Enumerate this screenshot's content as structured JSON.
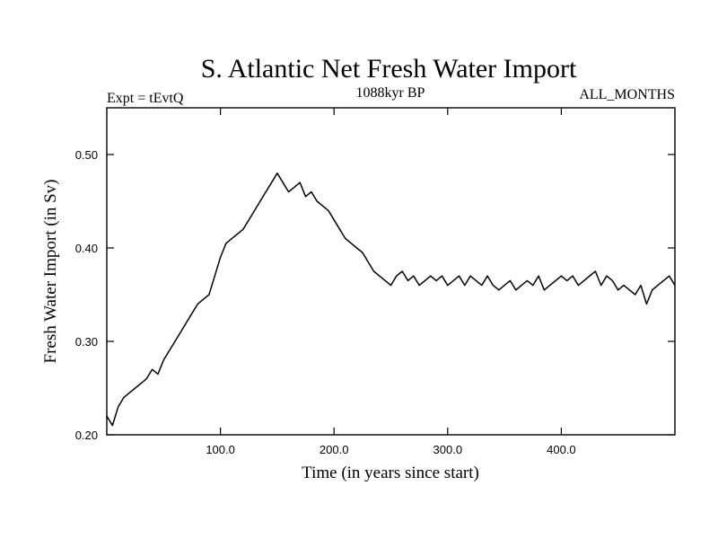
{
  "chart_data": {
    "type": "line",
    "title": "S. Atlantic Net Fresh Water Import",
    "subtitle_left": "Expt = tEvtQ",
    "subtitle_center": "1088kyr BP",
    "subtitle_right": "ALL_MONTHS",
    "xlabel": "Time (in years since start)",
    "ylabel": "Fresh Water Import (in Sv)",
    "xlim": [
      0,
      500
    ],
    "ylim": [
      0.2,
      0.55
    ],
    "x_ticks": [
      100,
      200,
      300,
      400
    ],
    "x_tick_labels": [
      "100.0",
      "200.0",
      "300.0",
      "400.0"
    ],
    "y_ticks": [
      0.2,
      0.3,
      0.4,
      0.5
    ],
    "y_tick_labels": [
      "0.20",
      "0.30",
      "0.40",
      "0.50"
    ],
    "grid": false,
    "series": [
      {
        "name": "Net Fresh Water Import",
        "x": [
          0,
          5,
          10,
          15,
          20,
          25,
          30,
          35,
          40,
          45,
          50,
          55,
          60,
          65,
          70,
          75,
          80,
          85,
          90,
          95,
          100,
          105,
          110,
          115,
          120,
          125,
          130,
          135,
          140,
          145,
          150,
          155,
          160,
          165,
          170,
          175,
          180,
          185,
          190,
          195,
          200,
          205,
          210,
          215,
          220,
          225,
          230,
          235,
          240,
          245,
          250,
          255,
          260,
          265,
          270,
          275,
          280,
          285,
          290,
          295,
          300,
          305,
          310,
          315,
          320,
          325,
          330,
          335,
          340,
          345,
          350,
          355,
          360,
          365,
          370,
          375,
          380,
          385,
          390,
          395,
          400,
          405,
          410,
          415,
          420,
          425,
          430,
          435,
          440,
          445,
          450,
          455,
          460,
          465,
          470,
          475,
          480,
          485,
          490,
          495,
          500
        ],
        "values": [
          0.22,
          0.21,
          0.23,
          0.24,
          0.245,
          0.25,
          0.255,
          0.26,
          0.27,
          0.265,
          0.28,
          0.29,
          0.3,
          0.31,
          0.32,
          0.33,
          0.34,
          0.345,
          0.35,
          0.37,
          0.39,
          0.405,
          0.41,
          0.415,
          0.42,
          0.43,
          0.44,
          0.45,
          0.46,
          0.47,
          0.48,
          0.47,
          0.46,
          0.465,
          0.47,
          0.455,
          0.46,
          0.45,
          0.445,
          0.44,
          0.43,
          0.42,
          0.41,
          0.405,
          0.4,
          0.395,
          0.385,
          0.375,
          0.37,
          0.365,
          0.36,
          0.37,
          0.375,
          0.365,
          0.37,
          0.36,
          0.365,
          0.37,
          0.365,
          0.37,
          0.36,
          0.365,
          0.37,
          0.36,
          0.37,
          0.365,
          0.36,
          0.37,
          0.36,
          0.355,
          0.36,
          0.365,
          0.355,
          0.36,
          0.365,
          0.36,
          0.37,
          0.355,
          0.36,
          0.365,
          0.37,
          0.365,
          0.37,
          0.36,
          0.365,
          0.37,
          0.375,
          0.36,
          0.37,
          0.365,
          0.355,
          0.36,
          0.355,
          0.35,
          0.36,
          0.34,
          0.355,
          0.36,
          0.365,
          0.37,
          0.36
        ]
      }
    ]
  }
}
